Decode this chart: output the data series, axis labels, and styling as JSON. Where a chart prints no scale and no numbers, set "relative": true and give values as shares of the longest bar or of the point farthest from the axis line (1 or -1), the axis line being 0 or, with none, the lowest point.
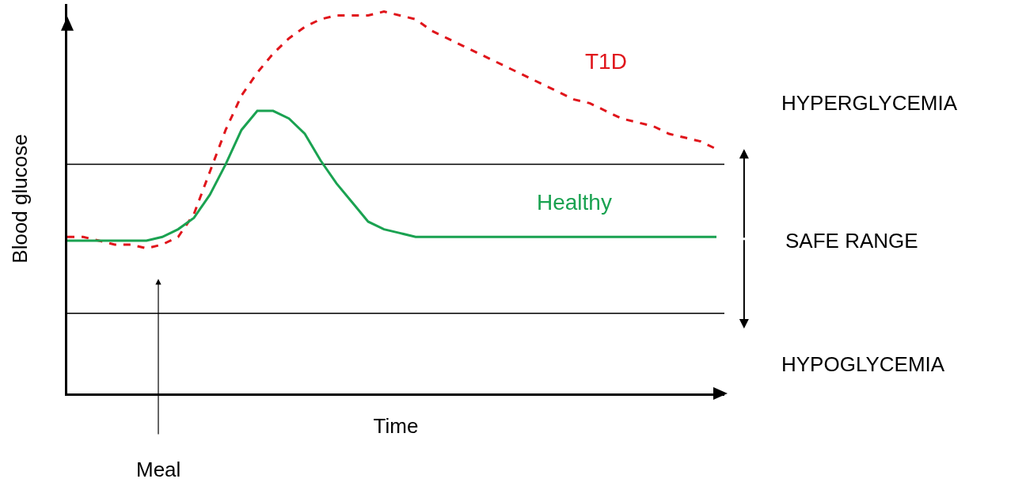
{
  "chart_data": {
    "type": "line",
    "relative": true,
    "xlabel": "Time",
    "ylabel": "Blood glucose",
    "legend": false,
    "grid": false,
    "marker": "none",
    "categories": [
      null,
      null,
      null,
      null,
      null,
      null,
      null,
      null,
      null,
      null,
      null,
      null,
      null,
      null,
      null,
      null,
      null,
      null,
      null,
      null,
      null,
      null,
      null,
      null,
      null,
      null,
      null,
      null,
      null,
      null,
      null,
      null,
      null,
      null,
      null,
      null,
      null,
      null,
      null,
      null,
      null,
      null
    ],
    "series": [
      {
        "name": "T1D",
        "color": "#e0151b",
        "line_style": "dashed",
        "values": [
          0.41,
          0.41,
          0.4,
          0.39,
          0.39,
          0.38,
          0.39,
          0.41,
          0.47,
          0.58,
          0.69,
          0.78,
          0.84,
          0.89,
          0.93,
          0.96,
          0.98,
          0.99,
          0.99,
          0.99,
          1.0,
          0.99,
          0.98,
          0.95,
          0.93,
          0.91,
          0.89,
          0.87,
          0.85,
          0.83,
          0.81,
          0.79,
          0.77,
          0.76,
          0.74,
          0.72,
          0.71,
          0.7,
          0.68,
          0.67,
          0.66,
          0.64
        ]
      },
      {
        "name": "Healthy",
        "color": "#1aa251",
        "line_style": "solid",
        "values": [
          0.4,
          0.4,
          0.4,
          0.4,
          0.4,
          0.4,
          0.41,
          0.43,
          0.46,
          0.52,
          0.6,
          0.69,
          0.74,
          0.74,
          0.72,
          0.68,
          0.61,
          0.55,
          0.5,
          0.45,
          0.43,
          0.42,
          0.41,
          0.41,
          0.41,
          0.41,
          0.41,
          0.41,
          0.41,
          0.41,
          0.41,
          0.41,
          0.41,
          0.41,
          0.41,
          0.41,
          0.41,
          0.41,
          0.41,
          0.41,
          0.41,
          0.41
        ]
      }
    ],
    "ref_lines": [
      {
        "axis": "y",
        "value": 0.6
      },
      {
        "axis": "y",
        "value": 0.21
      }
    ],
    "annotations": [
      "HYPERGLYCEMIA",
      "SAFE RANGE",
      "HYPOGLYCEMIA",
      "Meal"
    ]
  }
}
